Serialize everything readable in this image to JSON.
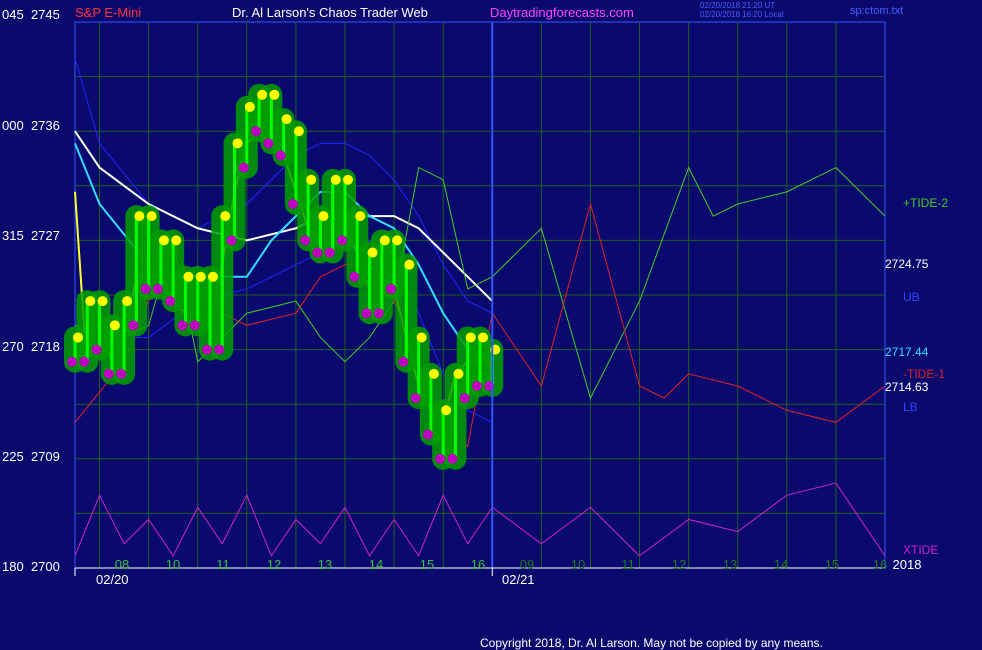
{
  "header": {
    "symbol": "S&P E-Mini",
    "title": "Dr. Al Larson's Chaos Trader Web",
    "site": "Daytradingforecasts.com",
    "timestamp_line1": "02/20/2018 21:20 UT",
    "timestamp_line2": "02/20/2018 16:20 Local",
    "file": "sp:ctom.txt"
  },
  "colors": {
    "background": "#0a0a6e",
    "grid": "#1f5f1f",
    "price_bar": "#00ff00",
    "price_glow": "#00a000",
    "high_dot": "#ffff00",
    "low_dot": "#c000c0",
    "cursor_line": "#3355ff",
    "upper_band": "#2222ff",
    "lower_band": "#2222ff",
    "white_ma": "#ffffff",
    "cyan_ma": "#33ddff",
    "yellow_ma": "#ffff33",
    "tide2": "#44cc22",
    "tide1": "#dd2222",
    "xtide": "#cc22cc"
  },
  "y_axis": {
    "labels": [
      {
        "left": "045",
        "right": "2745"
      },
      {
        "left": "000",
        "right": "2736"
      },
      {
        "left": "315",
        "right": "2727"
      },
      {
        "left": "270",
        "right": "2718"
      },
      {
        "left": "225",
        "right": "2709"
      },
      {
        "left": "180",
        "right": "2700"
      }
    ]
  },
  "x_axis": {
    "hours_day1": [
      "08",
      "10",
      "11",
      "12",
      "13",
      "14",
      "15",
      "16"
    ],
    "hours_day2": [
      "09",
      "10",
      "11",
      "12",
      "13",
      "14",
      "15",
      "16"
    ],
    "date1": "02/20",
    "date2": "02/21",
    "year": "2018"
  },
  "right_labels": {
    "tide2": "+TIDE-2",
    "upper_band_value": "2724.75",
    "ub": "UB",
    "cyan_value": "2717.44",
    "tide1": "-TIDE-1",
    "white_value": "2714.63",
    "lb": "LB",
    "xtide": "XTIDE"
  },
  "copyright": "Copyright 2018, Dr. Al Larson. May not be copied by any means.",
  "chart_data": {
    "type": "line",
    "ylim": [
      2700,
      2745
    ],
    "x_hours": [
      7.5,
      16.0
    ],
    "price": {
      "x": [
        7.5,
        7.75,
        8.0,
        8.25,
        8.5,
        8.75,
        9.0,
        9.25,
        9.5,
        9.75,
        10.0,
        10.25,
        10.5,
        10.75,
        11.0,
        11.25,
        11.5,
        11.75,
        12.0,
        12.25,
        12.5,
        12.75,
        13.0,
        13.25,
        13.5,
        13.75,
        14.0,
        14.25,
        14.5,
        14.75,
        15.0,
        15.25,
        15.5,
        15.75,
        16.0
      ],
      "y": [
        2718,
        2721,
        2719,
        2717,
        2721,
        2728,
        2724,
        2726,
        2723,
        2721,
        2723,
        2719,
        2728,
        2734,
        2737,
        2738,
        2736,
        2735,
        2731,
        2728,
        2727,
        2731,
        2728,
        2725,
        2722,
        2726,
        2724,
        2718,
        2715,
        2712,
        2710,
        2715,
        2718,
        2716,
        2717
      ]
    },
    "series": [
      {
        "name": "UB",
        "x": [
          7.5,
          8.0,
          9.0,
          10.0,
          11.0,
          12.0,
          12.5,
          13.0,
          13.5,
          14.0,
          14.5,
          15.0,
          15.5,
          16.0
        ],
        "y": [
          2742,
          2735,
          2730,
          2728,
          2730,
          2734,
          2735,
          2735,
          2734,
          2732,
          2729,
          2725,
          2722,
          2721
        ]
      },
      {
        "name": "LB",
        "x": [
          7.5,
          8.0,
          9.0,
          10.0,
          11.0,
          12.0,
          12.5,
          13.0,
          13.5,
          14.0,
          14.5,
          15.0,
          15.5,
          16.0
        ],
        "y": [
          2720,
          2719,
          2719,
          2722,
          2723,
          2725,
          2726,
          2727,
          2727,
          2725,
          2721,
          2716,
          2713,
          2712
        ]
      },
      {
        "name": "",
        "x": [
          7.5,
          8.0,
          9.0,
          10.0,
          11.0,
          12.0,
          12.5,
          13.0,
          13.5,
          14.0,
          14.5,
          15.0,
          15.5,
          16.0
        ],
        "y": [
          2736,
          2733,
          2730,
          2728,
          2727,
          2728,
          2729,
          2729,
          2729,
          2729,
          2728,
          2726,
          2724,
          2722
        ]
      },
      {
        "name": "",
        "x": [
          7.5,
          8.0,
          9.0,
          9.5,
          10.0,
          11.0,
          11.5,
          12.0,
          12.5,
          13.0,
          13.5,
          14.0,
          14.5,
          15.0,
          15.5,
          16.0
        ],
        "y": [
          2735,
          2730,
          2725,
          2724,
          2724,
          2724,
          2727,
          2729,
          2731,
          2731,
          2729,
          2728,
          2725,
          2721,
          2718,
          2717
        ]
      },
      {
        "name": "",
        "x": [
          7.5,
          7.7,
          8.0,
          8.25,
          8.5,
          8.75,
          9.0,
          9.25,
          9.5,
          9.75,
          10.0,
          10.25,
          10.5,
          10.75,
          11.0,
          11.25,
          11.5,
          11.75,
          12.0,
          12.25,
          12.5,
          12.75,
          13.0,
          13.25,
          13.5,
          13.75,
          14.0,
          14.25,
          14.5,
          14.75,
          15.0,
          15.25,
          15.5,
          15.75,
          16.0
        ],
        "y": [
          2731,
          2719,
          2720,
          2717,
          2719,
          2724,
          2724,
          2724,
          2722,
          2721,
          2721,
          2720,
          2725,
          2731,
          2735,
          2736,
          2735,
          2734,
          2731,
          2728,
          2727,
          2729,
          2728,
          2726,
          2723,
          2724,
          2723,
          2719,
          2715,
          2713,
          2712,
          2716,
          2717,
          2717,
          2717
        ]
      },
      {
        "name": "+TIDE-2",
        "x": [
          7.5,
          8.5,
          9.0,
          9.5,
          10.0,
          11.0,
          12.0,
          12.5,
          13.0,
          13.5,
          14.0,
          14.5,
          15.0,
          15.5,
          16.0,
          17.0,
          18.0,
          19.0,
          20.0,
          20.5,
          21.0,
          22.0,
          23.0,
          24.0
        ],
        "y": [
          2720,
          2719,
          2720,
          2727,
          2717,
          2721,
          2722,
          2719,
          2717,
          2719,
          2722,
          2733,
          2732,
          2723,
          2724,
          2728,
          2714,
          2722,
          2733,
          2729,
          2730,
          2731,
          2733,
          2729
        ]
      },
      {
        "name": "-TIDE-1",
        "x": [
          7.5,
          8.5,
          9.0,
          9.5,
          10.0,
          11.0,
          12.0,
          12.5,
          13.0,
          13.5,
          14.0,
          14.5,
          15.0,
          15.5,
          16.0,
          17.0,
          18.0,
          19.0,
          19.5,
          20.0,
          21.0,
          22.0,
          23.0,
          24.0
        ],
        "y": [
          2712,
          2717,
          2722,
          2727,
          2722,
          2720,
          2721,
          2724,
          2725,
          2725,
          2722,
          2717,
          2712,
          2710,
          2721,
          2715,
          2730,
          2715,
          2714,
          2716,
          2715,
          2713,
          2712,
          2715
        ]
      },
      {
        "name": "XTIDE",
        "x": [
          7.5,
          8.0,
          8.5,
          9.0,
          9.5,
          10.0,
          10.5,
          11.0,
          11.5,
          12.0,
          12.5,
          13.0,
          13.5,
          14.0,
          14.5,
          15.0,
          15.5,
          16.0,
          17.0,
          18.0,
          19.0,
          20.0,
          21.0,
          22.0,
          23.0,
          24.0
        ],
        "y": [
          2701,
          2706,
          2702,
          2704,
          2701,
          2705,
          2702,
          2706,
          2701,
          2704,
          2702,
          2705,
          2701,
          2704,
          2701,
          2706,
          2702,
          2705,
          2702,
          2705,
          2701,
          2704,
          2703,
          2706,
          2707,
          2701
        ]
      }
    ]
  }
}
